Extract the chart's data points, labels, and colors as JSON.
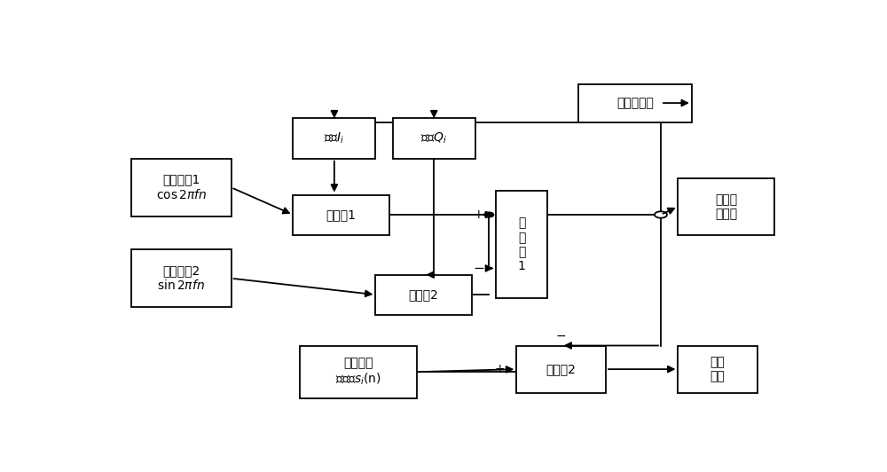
{
  "fig_width": 10.0,
  "fig_height": 5.32,
  "dpi": 100,
  "boxes": {
    "ref1": [
      0.03,
      0.56,
      0.145,
      0.16
    ],
    "ref2": [
      0.03,
      0.31,
      0.145,
      0.16
    ],
    "wI": [
      0.265,
      0.72,
      0.12,
      0.11
    ],
    "wQ": [
      0.41,
      0.72,
      0.12,
      0.11
    ],
    "mult1": [
      0.265,
      0.51,
      0.14,
      0.11
    ],
    "mult2": [
      0.385,
      0.29,
      0.14,
      0.11
    ],
    "adder1": [
      0.56,
      0.335,
      0.075,
      0.295
    ],
    "adder2": [
      0.59,
      0.075,
      0.13,
      0.13
    ],
    "digital": [
      0.275,
      0.06,
      0.17,
      0.145
    ],
    "adaptive": [
      0.68,
      0.82,
      0.165,
      0.105
    ],
    "calib": [
      0.825,
      0.51,
      0.14,
      0.155
    ],
    "interf": [
      0.825,
      0.075,
      0.115,
      0.13
    ]
  },
  "labels": {
    "ref1": "参考信号1\n$\\cos 2\\pi fn$",
    "ref2": "参考信号2\n$\\sin 2\\pi fn$",
    "wI": "权值$I_i$",
    "wQ": "权值$Q_i$",
    "mult1": "乘法器1",
    "mult2": "乘法器2",
    "adder1": "加\n法\n器\n1",
    "adder2": "加法器2",
    "digital": "接收的数\n字信号$s_i$(n)",
    "adaptive": "自适应算法",
    "calib": "校准辅\n助信号",
    "interf": "干扰\n信号"
  },
  "fontsize": 10,
  "lw": 1.3
}
